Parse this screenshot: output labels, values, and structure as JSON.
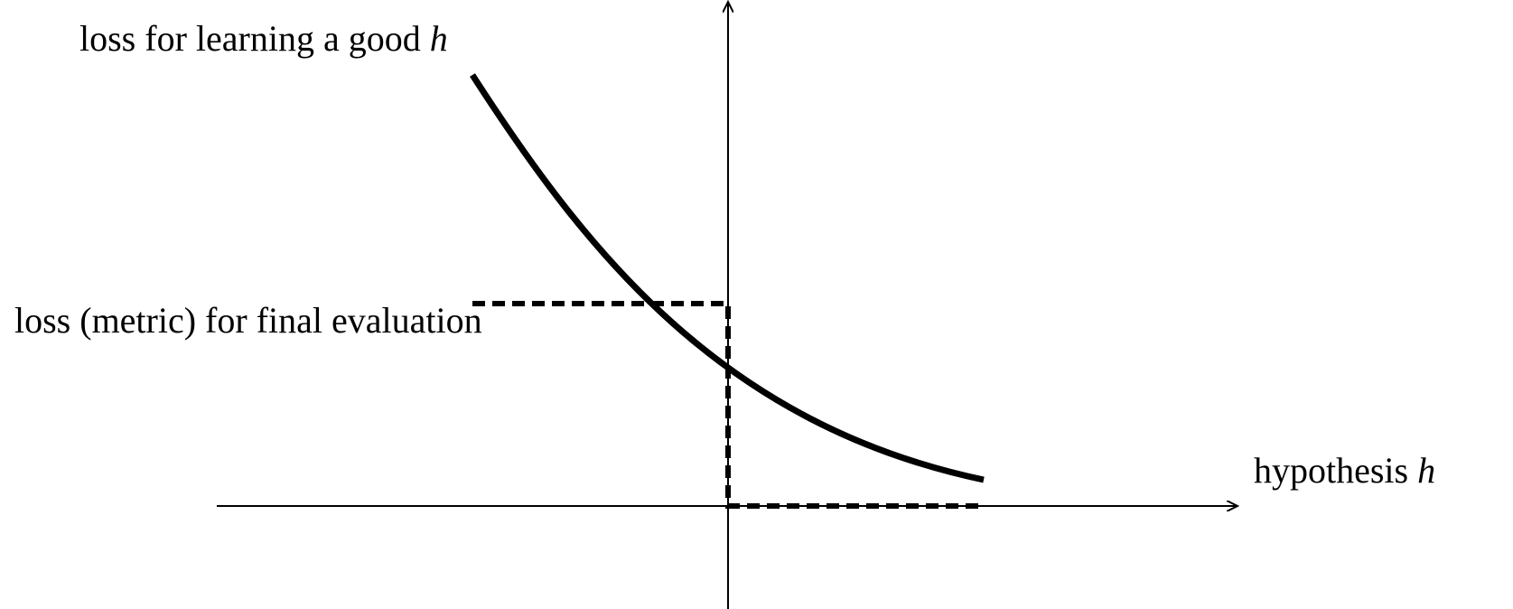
{
  "labels": {
    "curve": {
      "text": "loss for learning a good",
      "var": "h"
    },
    "metric": "loss (metric) for final evaluation",
    "x_axis": {
      "text": "hypothesis",
      "var": "h"
    }
  }
}
